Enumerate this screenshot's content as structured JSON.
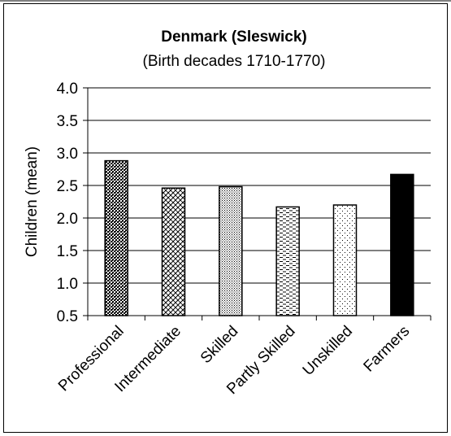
{
  "chart_data": {
    "type": "bar",
    "title": "Denmark (Sleswick)",
    "subtitle": "(Birth decades 1710-1770)",
    "xlabel": "",
    "ylabel": "Children (mean)",
    "ylim": [
      0.5,
      4.0
    ],
    "yticks": [
      "0.5",
      "1.0",
      "1.5",
      "2.0",
      "2.5",
      "3.0",
      "3.5",
      "4.0"
    ],
    "categories": [
      "Professional",
      "Intermediate",
      "Skilled",
      "Partly Skilled",
      "Unskilled",
      "Farmers"
    ],
    "values": [
      2.88,
      2.46,
      2.48,
      2.17,
      2.2,
      2.67
    ],
    "patterns": [
      "dense-checker",
      "crosshatch",
      "fine-dots",
      "dashes",
      "sparse-dots",
      "solid-black"
    ],
    "grid": true,
    "legend": "none"
  }
}
